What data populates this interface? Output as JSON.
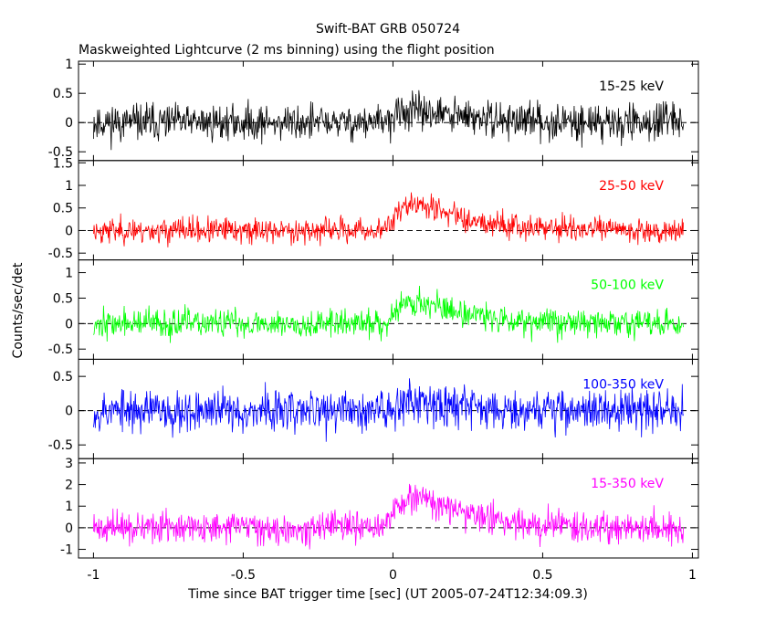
{
  "title": "Swift-BAT GRB 050724",
  "subtitle": "Maskweighted Lightcurve (2 ms binning) using the flight position",
  "xlabel": "Time since BAT trigger time [sec] (UT 2005-07-24T12:34:09.3)",
  "ylabel": "Counts/sec/det",
  "colors": {
    "axis": "#000000",
    "band1": "#000000",
    "band2": "#ff0000",
    "band3": "#00ff00",
    "band4": "#0000ff",
    "band5": "#ff00ff"
  },
  "chart_data": {
    "type": "line",
    "xlim": [
      -1.05,
      1.02
    ],
    "xticks": [
      "-1",
      "-0.5",
      "0",
      "0.5",
      "1"
    ],
    "xtick_values": [
      -1,
      -0.5,
      0,
      0.5,
      1
    ],
    "panels": [
      {
        "label": "15-25 keV",
        "color": "#000000",
        "ylim": [
          -0.65,
          1.05
        ],
        "yticks": [
          "1",
          "0.5",
          "0",
          "-0.5"
        ],
        "ytick_values": [
          1,
          0.5,
          0,
          -0.5
        ],
        "noise": 0.22,
        "burst_peak": 0.18,
        "seed": 11
      },
      {
        "label": "25-50 keV",
        "color": "#ff0000",
        "ylim": [
          -0.65,
          1.55
        ],
        "yticks": [
          "1.5",
          "1",
          "0.5",
          "0",
          "-0.5"
        ],
        "ytick_values": [
          1.5,
          1,
          0.5,
          0,
          -0.5
        ],
        "noise": 0.2,
        "burst_peak": 0.55,
        "seed": 23
      },
      {
        "label": "50-100 keV",
        "color": "#00ff00",
        "ylim": [
          -0.7,
          1.25
        ],
        "yticks": [
          "1",
          "0.5",
          "0",
          "-0.5"
        ],
        "ytick_values": [
          1,
          0.5,
          0,
          -0.5
        ],
        "noise": 0.2,
        "burst_peak": 0.4,
        "seed": 37
      },
      {
        "label": "100-350 keV",
        "color": "#0000ff",
        "ylim": [
          -0.7,
          0.75
        ],
        "yticks": [
          "0.5",
          "0",
          "-0.5"
        ],
        "ytick_values": [
          0.5,
          0,
          -0.5
        ],
        "noise": 0.22,
        "burst_peak": 0.15,
        "seed": 53
      },
      {
        "label": "15-350 keV",
        "color": "#ff00ff",
        "ylim": [
          -1.4,
          3.2
        ],
        "yticks": [
          "3",
          "2",
          "1",
          "0",
          "-1"
        ],
        "ytick_values": [
          3,
          2,
          1,
          0,
          -1
        ],
        "noise": 0.5,
        "burst_peak": 1.3,
        "seed": 71
      }
    ]
  }
}
